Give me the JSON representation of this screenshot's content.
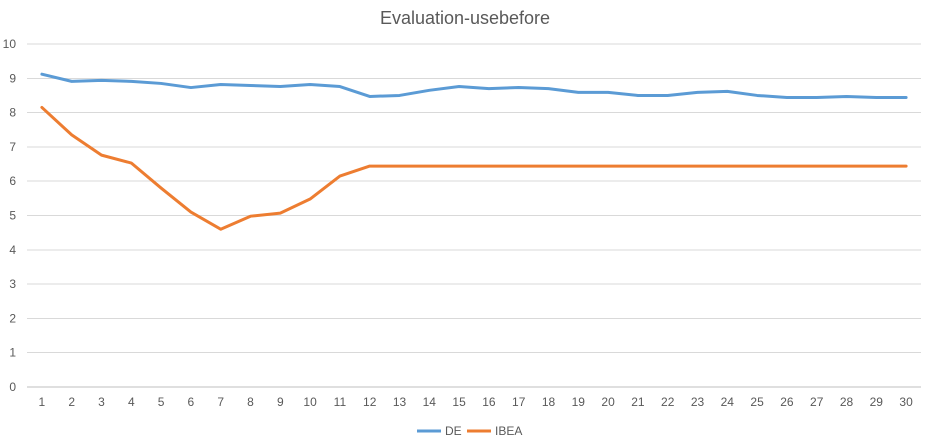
{
  "chart_data": {
    "type": "line",
    "title": "Evaluation-usebefore",
    "xlabel": "",
    "ylabel": "",
    "x": [
      1,
      2,
      3,
      4,
      5,
      6,
      7,
      8,
      9,
      10,
      11,
      12,
      13,
      14,
      15,
      16,
      17,
      18,
      19,
      20,
      21,
      22,
      23,
      24,
      25,
      26,
      27,
      28,
      29,
      30
    ],
    "ylim": [
      0,
      10
    ],
    "yticks": [
      0,
      1,
      2,
      3,
      4,
      5,
      6,
      7,
      8,
      9,
      10
    ],
    "grid": true,
    "legend_position": "bottom",
    "series": [
      {
        "name": "DE",
        "color": "#5b9bd5",
        "values": [
          9.12,
          8.91,
          8.94,
          8.91,
          8.85,
          8.73,
          8.82,
          8.79,
          8.76,
          8.82,
          8.76,
          8.47,
          8.5,
          8.65,
          8.76,
          8.7,
          8.73,
          8.7,
          8.59,
          8.59,
          8.5,
          8.5,
          8.59,
          8.62,
          8.5,
          8.44,
          8.44,
          8.47,
          8.44,
          8.44
        ]
      },
      {
        "name": "IBEA",
        "color": "#ed7d31",
        "values": [
          8.15,
          7.35,
          6.76,
          6.53,
          5.8,
          5.1,
          4.6,
          4.98,
          5.07,
          5.48,
          6.15,
          6.44,
          6.44,
          6.44,
          6.44,
          6.44,
          6.44,
          6.44,
          6.44,
          6.44,
          6.44,
          6.44,
          6.44,
          6.44,
          6.44,
          6.44,
          6.44,
          6.44,
          6.44,
          6.44
        ]
      }
    ]
  }
}
